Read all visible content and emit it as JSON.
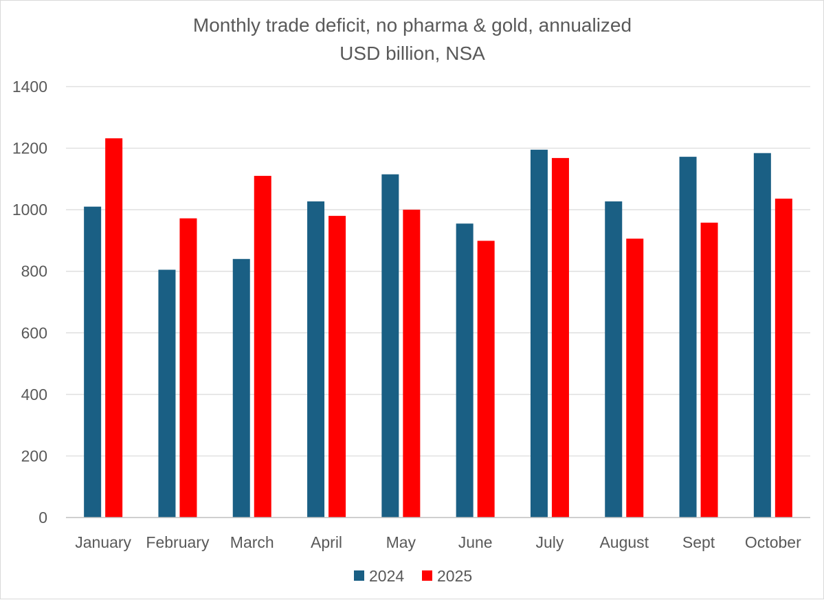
{
  "chart_data": {
    "type": "bar",
    "title": "Monthly trade deficit, no pharma & gold, annualized",
    "subtitle": "USD billion, NSA",
    "xlabel": "",
    "ylabel": "",
    "categories": [
      "January",
      "February",
      "March",
      "April",
      "May",
      "June",
      "July",
      "August",
      "Sept",
      "October"
    ],
    "series": [
      {
        "name": "2024",
        "color": "#1a5f84",
        "values": [
          1010,
          805,
          840,
          1027,
          1115,
          955,
          1195,
          1027,
          1172,
          1184
        ]
      },
      {
        "name": "2025",
        "color": "#ff0000",
        "values": [
          1232,
          972,
          1110,
          980,
          1000,
          899,
          1168,
          906,
          958,
          1036
        ]
      }
    ],
    "ylim": [
      0,
      1400
    ],
    "yticks": [
      "0",
      "200",
      "400",
      "600",
      "800",
      "1000",
      "1200",
      "1400"
    ],
    "grid": true,
    "legend": "bottom"
  }
}
